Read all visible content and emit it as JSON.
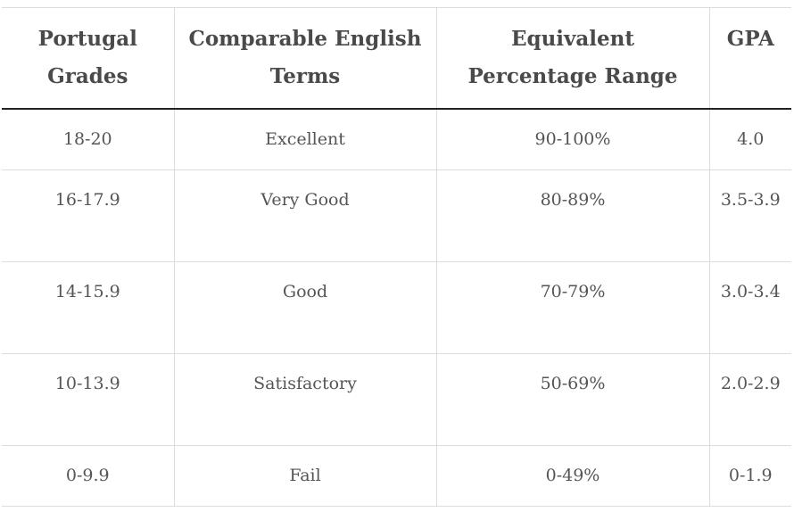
{
  "table": {
    "headers": {
      "portugal_grades": "Portugal Grades",
      "english_terms": "Comparable English Terms",
      "percentage_range": "Equivalent Percentage Range",
      "gpa": "GPA"
    },
    "rows": [
      {
        "grade": "18-20",
        "term": "Excellent",
        "percentage": "90-100%",
        "gpa": "4.0"
      },
      {
        "grade": "16-17.9",
        "term": "Very Good",
        "percentage": "80-89%",
        "gpa": "3.5-3.9"
      },
      {
        "grade": "14-15.9",
        "term": "Good",
        "percentage": "70-79%",
        "gpa": "3.0-3.4"
      },
      {
        "grade": "10-13.9",
        "term": "Satisfactory",
        "percentage": "50-69%",
        "gpa": "2.0-2.9"
      },
      {
        "grade": "0-9.9",
        "term": "Fail",
        "percentage": "0-49%",
        "gpa": "0-1.9"
      }
    ]
  },
  "colors": {
    "text": "#555555",
    "header_text": "#4a4a4a",
    "border": "#dcdcdc",
    "header_rule": "#222222"
  }
}
